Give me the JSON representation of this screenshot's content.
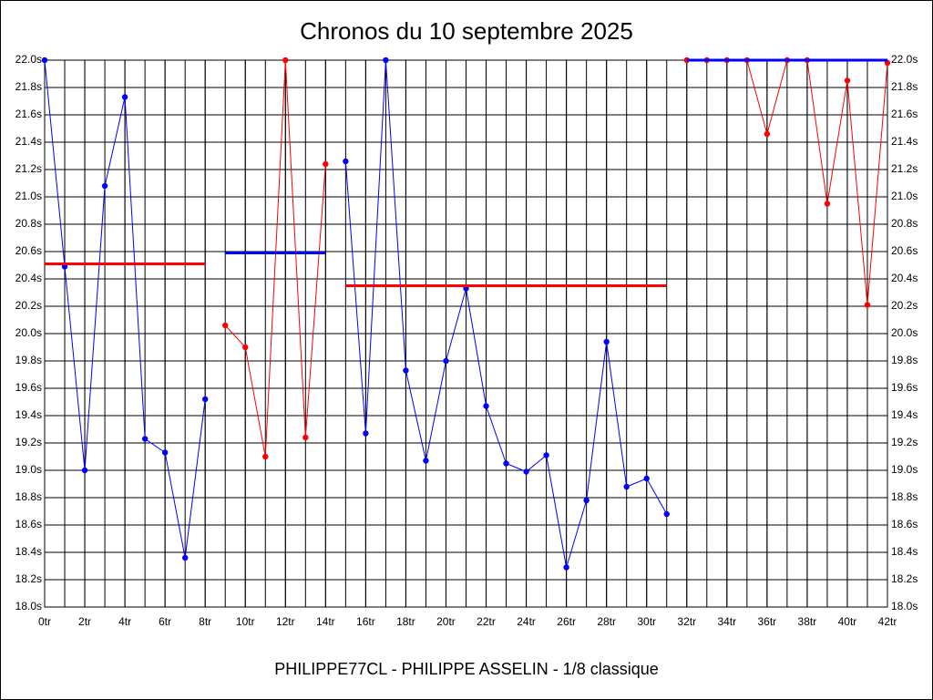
{
  "chart_data": {
    "type": "line",
    "title": "Chronos du 10 septembre 2025",
    "xlabel": "PHILIPPE77CL - PHILIPPE ASSELIN - 1/8 classique",
    "xlim": [
      0,
      42
    ],
    "ylim": [
      18.0,
      22.0
    ],
    "grid": true,
    "xticks": [
      {
        "value": 0,
        "label": "0tr"
      },
      {
        "value": 2,
        "label": "2tr"
      },
      {
        "value": 4,
        "label": "4tr"
      },
      {
        "value": 6,
        "label": "6tr"
      },
      {
        "value": 8,
        "label": "8tr"
      },
      {
        "value": 10,
        "label": "10tr"
      },
      {
        "value": 12,
        "label": "12tr"
      },
      {
        "value": 14,
        "label": "14tr"
      },
      {
        "value": 16,
        "label": "16tr"
      },
      {
        "value": 18,
        "label": "18tr"
      },
      {
        "value": 20,
        "label": "20tr"
      },
      {
        "value": 22,
        "label": "22tr"
      },
      {
        "value": 24,
        "label": "24tr"
      },
      {
        "value": 26,
        "label": "26tr"
      },
      {
        "value": 28,
        "label": "28tr"
      },
      {
        "value": 30,
        "label": "30tr"
      },
      {
        "value": 32,
        "label": "32tr"
      },
      {
        "value": 34,
        "label": "34tr"
      },
      {
        "value": 36,
        "label": "36tr"
      },
      {
        "value": 38,
        "label": "38tr"
      },
      {
        "value": 40,
        "label": "40tr"
      },
      {
        "value": 42,
        "label": "42tr"
      }
    ],
    "yticks": [
      {
        "value": 18.0,
        "label": "18.0s"
      },
      {
        "value": 18.2,
        "label": "18.2s"
      },
      {
        "value": 18.4,
        "label": "18.4s"
      },
      {
        "value": 18.6,
        "label": "18.6s"
      },
      {
        "value": 18.8,
        "label": "18.8s"
      },
      {
        "value": 19.0,
        "label": "19.0s"
      },
      {
        "value": 19.2,
        "label": "19.2s"
      },
      {
        "value": 19.4,
        "label": "19.4s"
      },
      {
        "value": 19.6,
        "label": "19.6s"
      },
      {
        "value": 19.8,
        "label": "19.8s"
      },
      {
        "value": 20.0,
        "label": "20.0s"
      },
      {
        "value": 20.2,
        "label": "20.2s"
      },
      {
        "value": 20.4,
        "label": "20.4s"
      },
      {
        "value": 20.6,
        "label": "20.6s"
      },
      {
        "value": 20.8,
        "label": "20.8s"
      },
      {
        "value": 21.0,
        "label": "21.0s"
      },
      {
        "value": 21.2,
        "label": "21.2s"
      },
      {
        "value": 21.4,
        "label": "21.4s"
      },
      {
        "value": 21.6,
        "label": "21.6s"
      },
      {
        "value": 21.8,
        "label": "21.8s"
      },
      {
        "value": 22.0,
        "label": "22.0s"
      }
    ],
    "series": [
      {
        "color": "#0000ff",
        "markers": true,
        "x": [
          0,
          1,
          2,
          3,
          4,
          5,
          6,
          7,
          8
        ],
        "values": [
          22.0,
          20.49,
          19.0,
          21.08,
          21.73,
          19.23,
          19.13,
          18.36,
          19.52
        ]
      },
      {
        "color": "#ff0000",
        "markers": false,
        "x": [
          0,
          8
        ],
        "values": [
          20.51,
          20.51
        ]
      },
      {
        "color": "#ff0000",
        "markers": true,
        "x": [
          9,
          10,
          11,
          12,
          13,
          14
        ],
        "values": [
          20.06,
          19.9,
          19.1,
          22.0,
          19.24,
          21.24
        ]
      },
      {
        "color": "#0000ff",
        "markers": false,
        "x": [
          9,
          14
        ],
        "values": [
          20.59,
          20.59
        ]
      },
      {
        "color": "#0000ff",
        "markers": true,
        "x": [
          15,
          16,
          17,
          18,
          19,
          20,
          21,
          22,
          23,
          24,
          25,
          26,
          27,
          28,
          29,
          30,
          31
        ],
        "values": [
          21.26,
          19.27,
          22.0,
          19.73,
          19.07,
          19.8,
          20.33,
          19.47,
          19.05,
          18.99,
          19.11,
          18.29,
          18.78,
          19.94,
          18.88,
          18.94,
          18.68
        ]
      },
      {
        "color": "#ff0000",
        "markers": false,
        "x": [
          15,
          31
        ],
        "values": [
          20.35,
          20.35
        ]
      },
      {
        "color": "#ff0000",
        "markers": true,
        "x": [
          32,
          33,
          34,
          35,
          36,
          37,
          38,
          39,
          40,
          41,
          42
        ],
        "values": [
          22.0,
          22.0,
          22.0,
          22.0,
          21.46,
          22.0,
          22.0,
          20.95,
          21.85,
          20.21,
          21.98
        ]
      },
      {
        "color": "#0000ff",
        "markers": false,
        "x": [
          32,
          42
        ],
        "values": [
          22.0,
          22.0
        ]
      }
    ]
  }
}
